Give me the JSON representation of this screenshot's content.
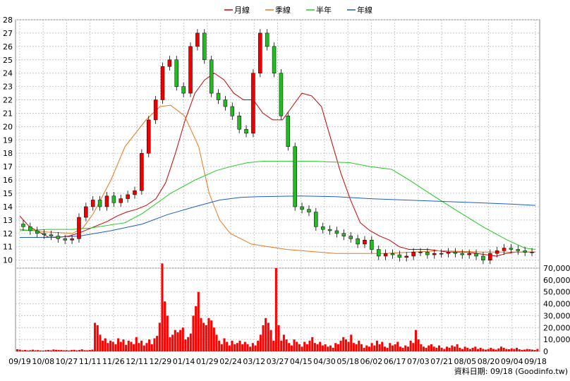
{
  "legend": [
    {
      "name": "月線",
      "color": "#cc0000"
    },
    {
      "name": "季線",
      "color": "#e87820"
    },
    {
      "name": "半年",
      "color": "#22cc22"
    },
    {
      "name": "年線",
      "color": "#1a5ccc"
    }
  ],
  "footer": {
    "caption": "資料日期: 09/18 (Goodinfo.tw)"
  },
  "chart_data": [
    {
      "type": "candlestick",
      "ylim": [
        9.4,
        28
      ],
      "yticks": [
        10,
        11,
        12,
        13,
        14,
        15,
        16,
        17,
        18,
        19,
        20,
        21,
        22,
        23,
        24,
        25,
        26,
        27,
        28
      ],
      "x_labels": [
        "09/19",
        "10/08",
        "10/27",
        "11/11",
        "11/26",
        "12/11",
        "12/29",
        "01/14",
        "01/29",
        "02/24",
        "03/12",
        "03/27",
        "04/15",
        "04/30",
        "05/18",
        "06/02",
        "06/17",
        "07/03",
        "07/21",
        "08/05",
        "08/20",
        "09/04",
        "09/18"
      ],
      "grid": true,
      "legend_position": "top",
      "up_color": "#ee0000",
      "down_color": "#22bb22",
      "close": [
        12.5,
        12.2,
        12.0,
        11.9,
        11.8,
        11.6,
        11.5,
        11.6,
        13.2,
        14.0,
        14.5,
        14.0,
        14.8,
        14.3,
        14.6,
        14.9,
        15.2,
        18.0,
        20.5,
        22.0,
        24.5,
        25.0,
        23.0,
        22.5,
        26.0,
        27.0,
        25.0,
        22.5,
        22.0,
        21.5,
        20.8,
        19.8,
        19.5,
        24.0,
        27.0,
        26.0,
        24.0,
        20.8,
        18.5,
        14.0,
        13.8,
        13.6,
        12.5,
        12.3,
        12.2,
        12.0,
        11.8,
        11.6,
        11.2,
        11.5,
        10.8,
        10.3,
        10.5,
        10.4,
        10.2,
        10.3,
        10.6,
        10.6,
        10.4,
        10.5,
        10.5,
        10.6,
        10.5,
        10.4,
        10.5,
        10.3,
        10.0,
        10.5,
        10.7,
        10.9,
        10.8,
        10.7,
        10.6,
        10.6
      ],
      "ma": {
        "月線": [
          13.3,
          12.5,
          12.1,
          11.7,
          11.7,
          11.8,
          12.0,
          12.3,
          12.6,
          12.9,
          13.3,
          13.6,
          13.8,
          14.1,
          14.6,
          15.8,
          18.0,
          20.5,
          22.5,
          23.5,
          24.0,
          23.5,
          22.5,
          22.0,
          22.0,
          21.0,
          20.5,
          20.5,
          21.5,
          22.5,
          22.3,
          21.5,
          19.0,
          16.5,
          14.5,
          12.8,
          12.2,
          11.8,
          11.5,
          11.0,
          10.8,
          10.8,
          10.8,
          10.7,
          10.6,
          10.6,
          10.6,
          10.5,
          10.4,
          10.3,
          10.5,
          10.6,
          10.6,
          10.6
        ]
      },
      "ma_x": [
        0,
        5,
        10,
        15,
        20,
        25,
        30,
        35,
        40,
        45,
        50,
        55,
        60,
        65,
        70,
        75,
        80,
        85,
        90,
        95,
        100,
        105,
        110,
        115,
        120,
        125,
        130,
        135,
        140,
        145,
        150,
        155,
        160,
        165,
        170,
        175,
        180,
        185,
        190,
        195,
        200,
        205,
        210,
        215,
        220,
        225,
        230,
        235,
        240,
        245,
        250,
        255,
        260,
        265
      ],
      "ma_series": {
        "季線": [
          [
            0,
            12.3
          ],
          [
            40,
            12.1
          ],
          [
            75,
            12.0
          ],
          [
            90,
            12.4
          ],
          [
            105,
            13.5
          ],
          [
            130,
            16.0
          ],
          [
            150,
            18.5
          ],
          [
            180,
            20.5
          ],
          [
            200,
            21.5
          ],
          [
            215,
            21.6
          ],
          [
            235,
            20.8
          ],
          [
            255,
            18.5
          ],
          [
            270,
            15.0
          ],
          [
            285,
            13.0
          ],
          [
            300,
            12.0
          ],
          [
            330,
            11.2
          ],
          [
            380,
            10.8
          ],
          [
            450,
            10.5
          ],
          [
            520,
            10.5
          ],
          [
            560,
            10.6
          ],
          [
            600,
            10.7
          ],
          [
            660,
            10.6
          ],
          [
            735,
            10.6
          ]
        ],
        "半年": [
          [
            0,
            12.2
          ],
          [
            40,
            12.3
          ],
          [
            75,
            12.3
          ],
          [
            100,
            12.4
          ],
          [
            150,
            12.8
          ],
          [
            175,
            13.5
          ],
          [
            215,
            15.0
          ],
          [
            250,
            16.0
          ],
          [
            280,
            16.7
          ],
          [
            300,
            17.0
          ],
          [
            325,
            17.3
          ],
          [
            345,
            17.4
          ],
          [
            420,
            17.4
          ],
          [
            470,
            17.3
          ],
          [
            500,
            17.0
          ],
          [
            530,
            16.8
          ],
          [
            555,
            16.0
          ],
          [
            590,
            14.8
          ],
          [
            620,
            13.8
          ],
          [
            660,
            12.5
          ],
          [
            695,
            11.5
          ],
          [
            720,
            10.9
          ],
          [
            735,
            10.8
          ]
        ],
        "年線": [
          [
            0,
            11.7
          ],
          [
            40,
            11.7
          ],
          [
            85,
            11.8
          ],
          [
            130,
            12.2
          ],
          [
            175,
            12.7
          ],
          [
            210,
            13.4
          ],
          [
            250,
            14.0
          ],
          [
            285,
            14.5
          ],
          [
            315,
            14.7
          ],
          [
            340,
            14.75
          ],
          [
            400,
            14.8
          ],
          [
            450,
            14.75
          ],
          [
            500,
            14.6
          ],
          [
            550,
            14.5
          ],
          [
            600,
            14.4
          ],
          [
            650,
            14.3
          ],
          [
            700,
            14.2
          ],
          [
            735,
            14.1
          ]
        ]
      }
    },
    {
      "type": "bar",
      "ylim": [
        0,
        70000
      ],
      "yticks": [
        0,
        10000,
        20000,
        30000,
        40000,
        50000,
        60000,
        70000
      ],
      "ytick_labels": [
        "0",
        "10,000",
        "20,000",
        "30,000",
        "40,000",
        "50,000",
        "60,000",
        "70,000"
      ],
      "bar_color": "#ff0000",
      "values": [
        1800,
        1500,
        900,
        1200,
        800,
        1000,
        1400,
        900,
        1100,
        800,
        700,
        1000,
        1200,
        900,
        1600,
        1300,
        1100,
        1200,
        900,
        1000,
        800,
        1100,
        1300,
        900,
        1200,
        1700,
        1000,
        900,
        1200,
        1500,
        24000,
        22000,
        14000,
        9000,
        11000,
        7000,
        9000,
        8000,
        6000,
        11000,
        8000,
        10000,
        5500,
        9000,
        8000,
        6000,
        12000,
        7000,
        9000,
        5000,
        7000,
        10000,
        6000,
        11000,
        13000,
        24000,
        74000,
        42000,
        30000,
        12000,
        14000,
        18000,
        16000,
        18000,
        20000,
        10000,
        12000,
        15000,
        30000,
        38000,
        50000,
        28000,
        24000,
        22000,
        28000,
        26000,
        20000,
        14000,
        9000,
        6000,
        11000,
        8000,
        5000,
        9000,
        6000,
        7000,
        9000,
        6000,
        8000,
        6000,
        4000,
        7000,
        5000,
        9000,
        14000,
        22000,
        28000,
        24000,
        18000,
        9000,
        70000,
        22000,
        9000,
        14000,
        10000,
        7000,
        5000,
        10000,
        8000,
        6000,
        4000,
        8000,
        6000,
        9000,
        12000,
        7000,
        6000,
        8000,
        5000,
        6000,
        4000,
        5000,
        3000,
        7000,
        6000,
        9000,
        12000,
        10000,
        8000,
        14000,
        7000,
        6000,
        9000,
        6000,
        3000,
        5000,
        4000,
        7000,
        5000,
        9000,
        6000,
        8000,
        4000,
        3000,
        7000,
        5000,
        6000,
        8000,
        4000,
        3000,
        5000,
        4000,
        9000,
        7000,
        18000,
        10000,
        6000,
        4000,
        3000,
        5000,
        6000,
        4000,
        3000,
        5000,
        3000,
        2000,
        4000,
        3000,
        5000,
        4000,
        6000,
        3000,
        2000,
        4000,
        3000,
        2000,
        3000,
        4000,
        2000,
        3000,
        2000,
        1500,
        2000,
        3000,
        2000,
        1500,
        2500,
        4000,
        3000,
        2000,
        1800,
        2500,
        2000,
        3000,
        1800,
        1200,
        1500,
        2000,
        1800,
        1500,
        1200,
        2000
      ]
    }
  ]
}
